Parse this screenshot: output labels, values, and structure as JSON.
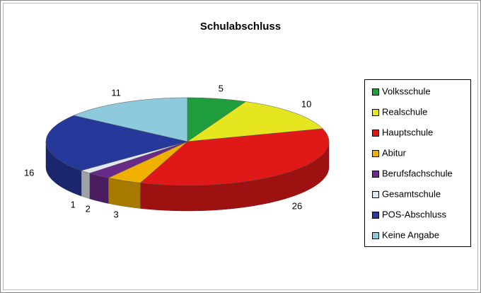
{
  "chart_data": {
    "type": "pie3d",
    "title": "Schulabschluss",
    "categories": [
      "Volksschule",
      "Realschule",
      "Hauptschule",
      "Abitur",
      "Berufsfachschule",
      "Gesamtschule",
      "POS-Abschluss",
      "Keine Angabe"
    ],
    "values": [
      5,
      10,
      26,
      3,
      2,
      1,
      16,
      11
    ],
    "colors": [
      "#1e9e3c",
      "#e6e620",
      "#e01818",
      "#f0b000",
      "#6a2a8a",
      "#e2e6ee",
      "#26389a",
      "#8ecade"
    ],
    "legend": "right"
  }
}
